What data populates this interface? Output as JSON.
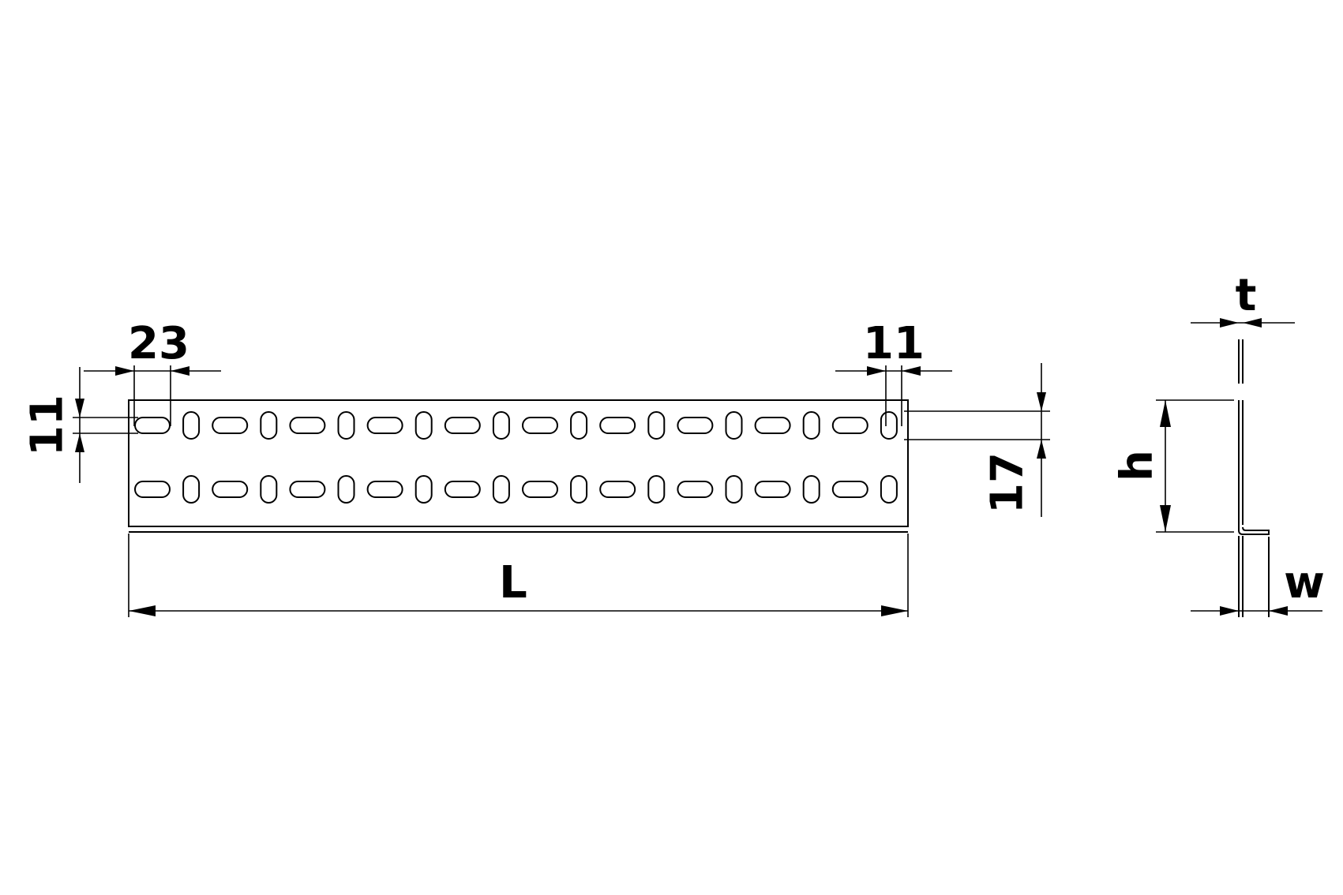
{
  "dimensions": {
    "slot_length": "23",
    "slot_width_left": "11",
    "slot_width_right": "11",
    "row_pitch": "17",
    "length": "L",
    "height": "h",
    "thickness": "t",
    "flange_width": "w"
  },
  "slot_pattern": {
    "rows": 2,
    "slots_per_row": 20,
    "alternating": [
      "horizontal",
      "vertical"
    ]
  }
}
